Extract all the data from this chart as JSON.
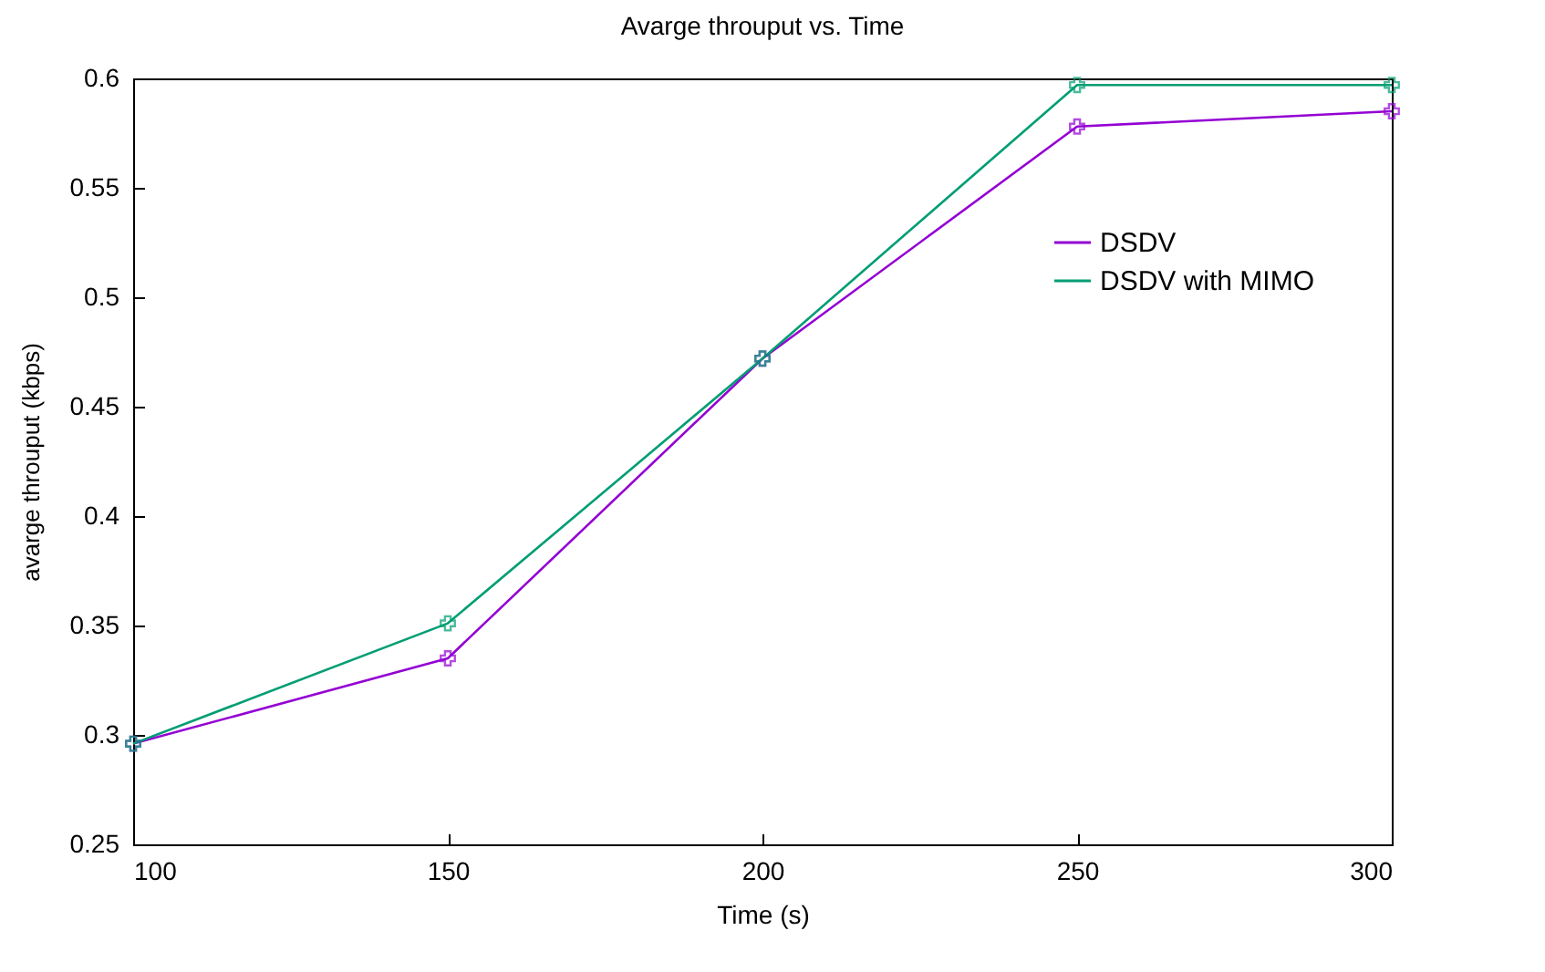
{
  "chart_data": {
    "type": "line",
    "title": "Avarge throuput vs. Time",
    "xlabel": "Time (s)",
    "ylabel": "avarge throuput (kbps)",
    "x": [
      100,
      150,
      200,
      250,
      300
    ],
    "series": [
      {
        "name": "DSDV",
        "color": "#9400d3",
        "values": [
          0.296,
          0.335,
          0.472,
          0.578,
          0.585
        ]
      },
      {
        "name": "DSDV with MIMO",
        "color": "#009e73",
        "values": [
          0.296,
          0.351,
          0.472,
          0.597,
          0.597
        ]
      }
    ],
    "xlim": [
      100,
      300
    ],
    "xticks": [
      100,
      150,
      200,
      250,
      300
    ],
    "ylim": [
      0.25,
      0.6
    ],
    "yticks": [
      0.25,
      0.3,
      0.35,
      0.4,
      0.45,
      0.5,
      0.55,
      0.6
    ],
    "grid": false,
    "legend": "top right",
    "marker": "cross",
    "line_style": "solid"
  }
}
